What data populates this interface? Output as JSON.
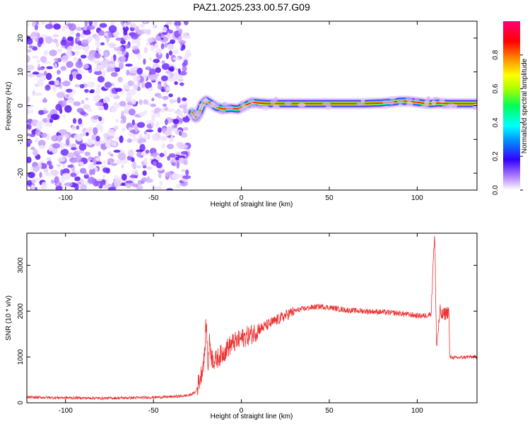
{
  "title": "PAZ1.2025.233.00.57.G09",
  "chart_data": [
    {
      "type": "heatmap",
      "name": "spectrogram",
      "xlabel": "Height of straight line (km)",
      "ylabel": "Frequency (Hz)",
      "xlim": [
        -122,
        134
      ],
      "ylim": [
        -25,
        25
      ],
      "x_ticks": [
        -100,
        -50,
        0,
        50,
        100
      ],
      "y_ticks": [
        -20,
        -10,
        0,
        10,
        20
      ],
      "x_tick_labels": [
        "-100",
        "-50",
        "0",
        "50",
        "100"
      ],
      "y_tick_labels": [
        "-20",
        "-10",
        "0",
        "10",
        "20"
      ],
      "noise_region_x": [
        -122,
        -30
      ],
      "signal_ridge": {
        "x": [
          -28,
          -26,
          -24,
          -22,
          -20,
          -17,
          -14,
          -10,
          -6,
          -2,
          2,
          6,
          10,
          15,
          20,
          30,
          40,
          50,
          60,
          70,
          80,
          85,
          90,
          95,
          100,
          105,
          108,
          112,
          118,
          125,
          134
        ],
        "freq": [
          -2,
          -3.5,
          -2,
          0.5,
          1.5,
          0.5,
          -0.5,
          -1,
          -0.8,
          -1,
          0,
          1,
          0.8,
          0.6,
          0.6,
          0.6,
          0.6,
          0.6,
          0.6,
          0.6,
          0.8,
          1,
          1.3,
          1.3,
          1,
          0.6,
          0.6,
          0.8,
          0.6,
          0.6,
          0.6
        ]
      },
      "colorbar": {
        "label": "Normalized spectral amplitude",
        "range": [
          0,
          1
        ],
        "ticks": [
          0.0,
          0.2,
          0.4,
          0.6,
          0.8
        ],
        "tick_labels": [
          "0.0",
          "0.2",
          "0.4",
          "0.6",
          "0.8"
        ]
      }
    },
    {
      "type": "line",
      "name": "snr",
      "xlabel": "Height of straight line (km)",
      "ylabel": "SNR (10 * v/v)",
      "xlim": [
        -122,
        134
      ],
      "ylim": [
        0,
        3700
      ],
      "x_ticks": [
        -100,
        -50,
        0,
        50,
        100
      ],
      "y_ticks": [
        0,
        1000,
        2000,
        3000
      ],
      "x_tick_labels": [
        "-100",
        "-50",
        "0",
        "50",
        "100"
      ],
      "y_tick_labels": [
        "0",
        "1000",
        "2000",
        "3000"
      ],
      "color": "#ee3333",
      "series": [
        {
          "name": "SNR",
          "x": [
            -122,
            -100,
            -80,
            -60,
            -40,
            -30,
            -26,
            -23,
            -21,
            -20,
            -19,
            -18,
            -17,
            -15,
            -13,
            -10,
            -8,
            -5,
            -2,
            0,
            3,
            6,
            10,
            15,
            20,
            25,
            30,
            35,
            40,
            45,
            50,
            60,
            70,
            80,
            90,
            100,
            105,
            108,
            109,
            110,
            111,
            112,
            113,
            114,
            118,
            118.5,
            122,
            128,
            134
          ],
          "y": [
            120,
            110,
            100,
            110,
            130,
            160,
            230,
            600,
            1000,
            1800,
            800,
            1400,
            1000,
            900,
            1000,
            1100,
            1200,
            1300,
            1350,
            1400,
            1450,
            1500,
            1600,
            1700,
            1800,
            1900,
            2000,
            2050,
            2080,
            2100,
            2080,
            2020,
            2000,
            1980,
            1950,
            1900,
            1900,
            1950,
            3100,
            3600,
            1200,
            1600,
            2000,
            1900,
            2000,
            1000,
            980,
            1000,
            1000
          ]
        }
      ]
    }
  ]
}
